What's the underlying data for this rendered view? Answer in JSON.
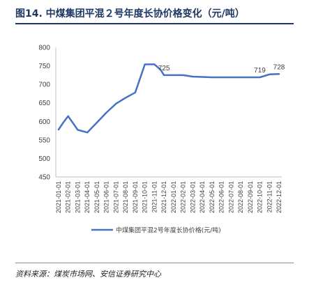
{
  "figure": {
    "title": "图14. 中煤集团平混２号年度长协价格变化（元/吨）",
    "source": "资料来源：煤炭市场网、安信证券研究中心"
  },
  "chart_data": {
    "type": "line",
    "title": "图14. 中煤集团平混２号年度长协价格变化（元/吨）",
    "xlabel": "",
    "ylabel": "",
    "ylim": [
      450,
      800
    ],
    "yticks": [
      450,
      500,
      550,
      600,
      650,
      700,
      750,
      800
    ],
    "grid": false,
    "legend_position": "bottom",
    "categories": [
      "2021-01-01",
      "2021-02-01",
      "2021-03-01",
      "2021-04-01",
      "2021-05-01",
      "2021-06-01",
      "2021-07-01",
      "2021-08-01",
      "2021-09-01",
      "2021-10-01",
      "2021-11-01",
      "2021-12-01",
      "2022-01-01",
      "2022-02-01",
      "2022-03-01",
      "2022-04-01",
      "2022-05-01",
      "2022-06-01",
      "2022-07-01",
      "2022-08-01",
      "2022-09-01",
      "2022-10-01",
      "2022-11-01",
      "2022-12-01"
    ],
    "x": [
      "2021-01-01",
      "2021-01-15",
      "2021-02-01",
      "2021-03-01",
      "2021-04-01",
      "2021-05-01",
      "2021-06-01",
      "2021-07-01",
      "2021-08-01",
      "2021-09-01",
      "2021-10-01",
      "2021-11-01",
      "2021-11-20",
      "2021-12-01",
      "2022-01-01",
      "2022-02-01",
      "2022-03-01",
      "2022-04-01",
      "2022-05-01",
      "2022-06-01",
      "2022-07-01",
      "2022-08-01",
      "2022-09-01",
      "2022-10-01",
      "2022-10-20",
      "2022-11-01",
      "2022-12-01"
    ],
    "series": [
      {
        "name": "中煤集团平混2号年度长协价格(元/吨)",
        "color": "#4472c4",
        "values": [
          578,
          596,
          614,
          577,
          570,
          597,
          624,
          648,
          664,
          678,
          754,
          754,
          740,
          725,
          725,
          725,
          721,
          720,
          719,
          719,
          719,
          719,
          719,
          719,
          724,
          727,
          728
        ]
      }
    ],
    "data_labels": [
      {
        "x": "2021-12-01",
        "text": "725"
      },
      {
        "x": "2022-10-01",
        "text": "719"
      },
      {
        "x": "2022-12-01",
        "text": "728"
      }
    ]
  }
}
